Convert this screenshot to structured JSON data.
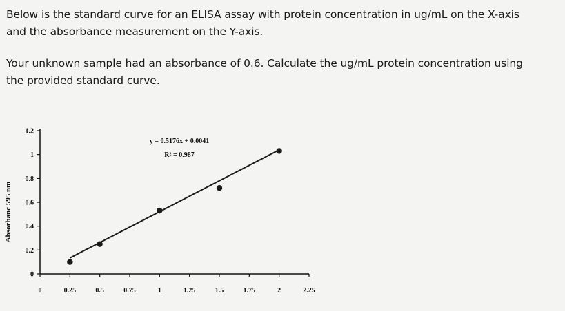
{
  "question": {
    "line1": "Below is the standard curve for an ELISA assay with protein concentration in ug/mL on the X-axis",
    "line2": "and the absorbance measurement on the Y-axis.",
    "line3": "Your unknown sample had an absorbance of 0.6.  Calculate the ug/mL protein concentration using",
    "line4": "the provided standard curve."
  },
  "chart_data": {
    "type": "scatter",
    "ylabel": "Absorbanc 595 nm",
    "xlabel": "",
    "x_ticks": [
      "0",
      "0.25",
      "0.5",
      "0.75",
      "1",
      "1.25",
      "1.5",
      "1.75",
      "2",
      "2.25"
    ],
    "y_ticks": [
      "0",
      "0.2",
      "0.4",
      "0.6",
      "0.8",
      "1",
      "1.2"
    ],
    "xlim": [
      0,
      2.25
    ],
    "ylim": [
      0,
      1.2
    ],
    "points": [
      {
        "x": 0.25,
        "y": 0.1
      },
      {
        "x": 0.5,
        "y": 0.25
      },
      {
        "x": 1.0,
        "y": 0.53
      },
      {
        "x": 1.5,
        "y": 0.72
      },
      {
        "x": 2.0,
        "y": 1.03
      }
    ],
    "trendline": {
      "slope": 0.5176,
      "intercept": 0.0041,
      "x_range": [
        0.25,
        2.0
      ]
    },
    "equation": "y = 0.5176x + 0.0041",
    "r_squared": "R² = 0.987",
    "grid": false,
    "colors": {
      "points": "#1a1a1a",
      "line": "#1a1a1a"
    }
  }
}
